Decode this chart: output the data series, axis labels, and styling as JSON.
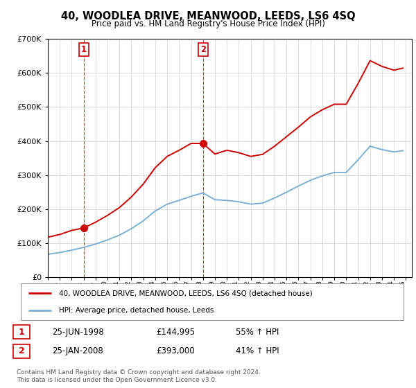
{
  "title": "40, WOODLEA DRIVE, MEANWOOD, LEEDS, LS6 4SQ",
  "subtitle": "Price paid vs. HM Land Registry's House Price Index (HPI)",
  "legend_property": "40, WOODLEA DRIVE, MEANWOOD, LEEDS, LS6 4SQ (detached house)",
  "legend_hpi": "HPI: Average price, detached house, Leeds",
  "sale1_label": "1",
  "sale1_date": "25-JUN-1998",
  "sale1_price": 144995,
  "sale1_text": "55% ↑ HPI",
  "sale2_label": "2",
  "sale2_date": "25-JAN-2008",
  "sale2_price": 393000,
  "sale2_text": "41% ↑ HPI",
  "footnote": "Contains HM Land Registry data © Crown copyright and database right 2024.\nThis data is licensed under the Open Government Licence v3.0.",
  "property_color": "#cc0000",
  "hpi_color": "#7bafd4",
  "ylim": [
    0,
    700000
  ],
  "xlim": [
    1995,
    2025.5
  ],
  "hpi_data_years": [
    1995,
    1996,
    1997,
    1998,
    1999,
    2000,
    2001,
    2002,
    2003,
    2004,
    2005,
    2006,
    2007,
    2008,
    2009,
    2010,
    2011,
    2012,
    2013,
    2014,
    2015,
    2016,
    2017,
    2018,
    2019,
    2020,
    2021,
    2022,
    2023,
    2024,
    2024.75
  ],
  "hpi_data_values": [
    68000,
    73000,
    80000,
    88000,
    98000,
    110000,
    124000,
    143000,
    166000,
    195000,
    215000,
    226000,
    238000,
    248000,
    228000,
    226000,
    222000,
    215000,
    218000,
    233000,
    250000,
    268000,
    285000,
    298000,
    308000,
    308000,
    345000,
    385000,
    375000,
    368000,
    372000
  ],
  "prop_data_years": [
    1995,
    1996,
    1997,
    1998,
    1999,
    2000,
    2001,
    2002,
    2003,
    2004,
    2005,
    2006,
    2007,
    2008,
    2009,
    2010,
    2011,
    2012,
    2013,
    2014,
    2015,
    2016,
    2017,
    2018,
    2019,
    2020,
    2021,
    2022,
    2023,
    2024,
    2024.75
  ],
  "prop_data_values": [
    118000,
    126000,
    138000,
    145000,
    162000,
    182000,
    205000,
    236000,
    274000,
    322000,
    355000,
    373000,
    393000,
    393000,
    362000,
    373000,
    366000,
    355000,
    361000,
    385000,
    413000,
    441000,
    471000,
    492000,
    508000,
    508000,
    569000,
    636000,
    619000,
    608000,
    614000
  ],
  "sale1_year": 1998,
  "sale2_year": 2008,
  "marker_size": 7
}
